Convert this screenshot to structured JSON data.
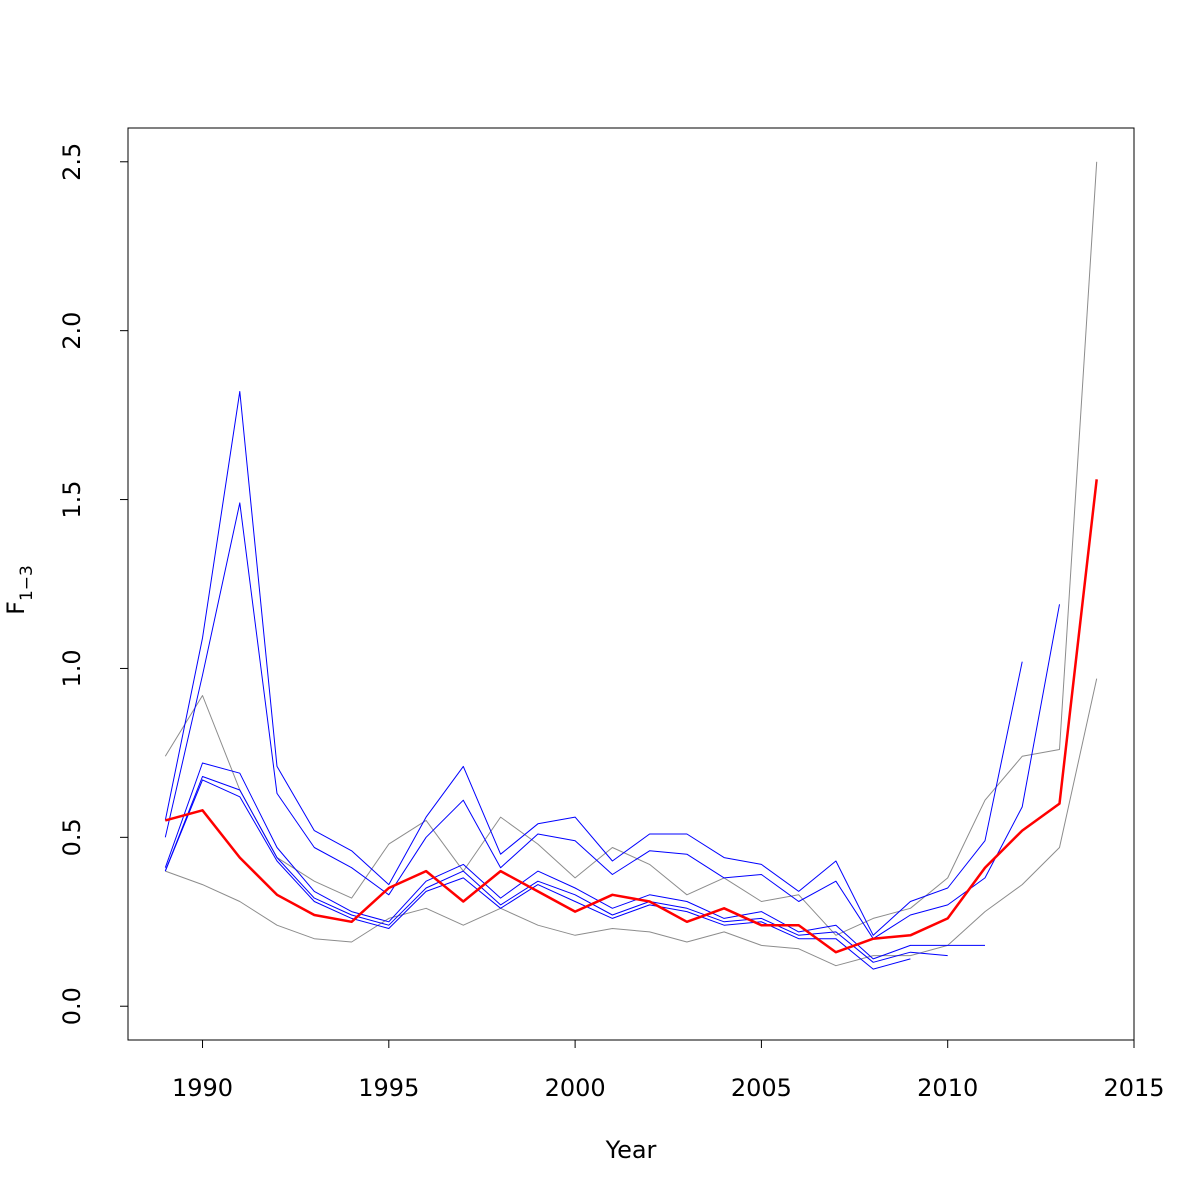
{
  "chart_data": {
    "type": "line",
    "xlabel": "Year",
    "ylabel": {
      "main": "F",
      "subscript": "1−3"
    },
    "xlim": [
      1988,
      2015
    ],
    "ylim": [
      -0.1,
      2.6
    ],
    "x_ticks": [
      1990,
      1995,
      2000,
      2005,
      2010,
      2015
    ],
    "x_tick_labels": [
      "1990",
      "1995",
      "2000",
      "2005",
      "2010",
      "2015"
    ],
    "y_ticks": [
      0.0,
      0.5,
      1.0,
      1.5,
      2.0,
      2.5
    ],
    "y_tick_labels": [
      "0.0",
      "0.5",
      "1.0",
      "1.5",
      "2.0",
      "2.5"
    ],
    "grid": false,
    "legend": "none",
    "colors": {
      "main": "#ff0000",
      "retro": "#0000ff",
      "bounds": "#8c8c8c",
      "axis": "#000000"
    },
    "series": [
      {
        "role": "main",
        "color": "#ff0000",
        "points": [
          [
            1989,
            0.55
          ],
          [
            1990,
            0.58
          ],
          [
            1991,
            0.44
          ],
          [
            1992,
            0.33
          ],
          [
            1993,
            0.27
          ],
          [
            1994,
            0.25
          ],
          [
            1995,
            0.35
          ],
          [
            1996,
            0.4
          ],
          [
            1997,
            0.31
          ],
          [
            1998,
            0.4
          ],
          [
            1999,
            0.34
          ],
          [
            2000,
            0.28
          ],
          [
            2001,
            0.33
          ],
          [
            2002,
            0.31
          ],
          [
            2003,
            0.25
          ],
          [
            2004,
            0.29
          ],
          [
            2005,
            0.24
          ],
          [
            2006,
            0.24
          ],
          [
            2007,
            0.16
          ],
          [
            2008,
            0.2
          ],
          [
            2009,
            0.21
          ],
          [
            2010,
            0.26
          ],
          [
            2011,
            0.41
          ],
          [
            2012,
            0.52
          ],
          [
            2013,
            0.6
          ],
          [
            2014,
            1.56
          ]
        ]
      },
      {
        "role": "bound",
        "color": "#8c8c8c",
        "points": [
          [
            1989,
            0.74
          ],
          [
            1990,
            0.92
          ],
          [
            1991,
            0.64
          ],
          [
            1992,
            0.44
          ],
          [
            1993,
            0.37
          ],
          [
            1994,
            0.32
          ],
          [
            1995,
            0.48
          ],
          [
            1996,
            0.55
          ],
          [
            1997,
            0.4
          ],
          [
            1998,
            0.56
          ],
          [
            1999,
            0.48
          ],
          [
            2000,
            0.38
          ],
          [
            2001,
            0.47
          ],
          [
            2002,
            0.42
          ],
          [
            2003,
            0.33
          ],
          [
            2004,
            0.38
          ],
          [
            2005,
            0.31
          ],
          [
            2006,
            0.33
          ],
          [
            2007,
            0.21
          ],
          [
            2008,
            0.26
          ],
          [
            2009,
            0.29
          ],
          [
            2010,
            0.38
          ],
          [
            2011,
            0.61
          ],
          [
            2012,
            0.74
          ],
          [
            2013,
            0.76
          ],
          [
            2014,
            2.5
          ]
        ]
      },
      {
        "role": "bound",
        "color": "#8c8c8c",
        "points": [
          [
            1989,
            0.4
          ],
          [
            1990,
            0.36
          ],
          [
            1991,
            0.31
          ],
          [
            1992,
            0.24
          ],
          [
            1993,
            0.2
          ],
          [
            1994,
            0.19
          ],
          [
            1995,
            0.26
          ],
          [
            1996,
            0.29
          ],
          [
            1997,
            0.24
          ],
          [
            1998,
            0.29
          ],
          [
            1999,
            0.24
          ],
          [
            2000,
            0.21
          ],
          [
            2001,
            0.23
          ],
          [
            2002,
            0.22
          ],
          [
            2003,
            0.19
          ],
          [
            2004,
            0.22
          ],
          [
            2005,
            0.18
          ],
          [
            2006,
            0.17
          ],
          [
            2007,
            0.12
          ],
          [
            2008,
            0.15
          ],
          [
            2009,
            0.15
          ],
          [
            2010,
            0.18
          ],
          [
            2011,
            0.28
          ],
          [
            2012,
            0.36
          ],
          [
            2013,
            0.47
          ],
          [
            2014,
            0.97
          ]
        ]
      },
      {
        "role": "retro",
        "color": "#0000ff",
        "points": [
          [
            1989,
            0.55
          ],
          [
            1990,
            1.09
          ],
          [
            1991,
            1.82
          ],
          [
            1992,
            0.71
          ],
          [
            1993,
            0.52
          ],
          [
            1994,
            0.46
          ],
          [
            1995,
            0.36
          ],
          [
            1996,
            0.56
          ],
          [
            1997,
            0.71
          ],
          [
            1998,
            0.45
          ],
          [
            1999,
            0.54
          ],
          [
            2000,
            0.56
          ],
          [
            2001,
            0.43
          ],
          [
            2002,
            0.51
          ],
          [
            2003,
            0.51
          ],
          [
            2004,
            0.44
          ],
          [
            2005,
            0.42
          ],
          [
            2006,
            0.34
          ],
          [
            2007,
            0.43
          ],
          [
            2008,
            0.21
          ],
          [
            2009,
            0.31
          ],
          [
            2010,
            0.35
          ],
          [
            2011,
            0.49
          ],
          [
            2012,
            1.02
          ]
        ]
      },
      {
        "role": "retro",
        "color": "#0000ff",
        "points": [
          [
            1989,
            0.5
          ],
          [
            1990,
            0.98
          ],
          [
            1991,
            1.49
          ],
          [
            1992,
            0.63
          ],
          [
            1993,
            0.47
          ],
          [
            1994,
            0.41
          ],
          [
            1995,
            0.33
          ],
          [
            1996,
            0.5
          ],
          [
            1997,
            0.61
          ],
          [
            1998,
            0.41
          ],
          [
            1999,
            0.51
          ],
          [
            2000,
            0.49
          ],
          [
            2001,
            0.39
          ],
          [
            2002,
            0.46
          ],
          [
            2003,
            0.45
          ],
          [
            2004,
            0.38
          ],
          [
            2005,
            0.39
          ],
          [
            2006,
            0.31
          ],
          [
            2007,
            0.37
          ],
          [
            2008,
            0.2
          ],
          [
            2009,
            0.27
          ],
          [
            2010,
            0.3
          ],
          [
            2011,
            0.38
          ],
          [
            2012,
            0.59
          ],
          [
            2013,
            1.19
          ]
        ]
      },
      {
        "role": "retro",
        "color": "#0000ff",
        "points": [
          [
            1989,
            0.41
          ],
          [
            1990,
            0.72
          ],
          [
            1991,
            0.69
          ],
          [
            1992,
            0.47
          ],
          [
            1993,
            0.34
          ],
          [
            1994,
            0.28
          ],
          [
            1995,
            0.25
          ],
          [
            1996,
            0.37
          ],
          [
            1997,
            0.42
          ],
          [
            1998,
            0.32
          ],
          [
            1999,
            0.4
          ],
          [
            2000,
            0.35
          ],
          [
            2001,
            0.29
          ],
          [
            2002,
            0.33
          ],
          [
            2003,
            0.31
          ],
          [
            2004,
            0.26
          ],
          [
            2005,
            0.28
          ],
          [
            2006,
            0.22
          ],
          [
            2007,
            0.24
          ],
          [
            2008,
            0.14
          ],
          [
            2009,
            0.18
          ],
          [
            2010,
            0.18
          ],
          [
            2011,
            0.18
          ]
        ]
      },
      {
        "role": "retro",
        "color": "#0000ff",
        "points": [
          [
            1989,
            0.4
          ],
          [
            1990,
            0.68
          ],
          [
            1991,
            0.64
          ],
          [
            1992,
            0.44
          ],
          [
            1993,
            0.32
          ],
          [
            1994,
            0.27
          ],
          [
            1995,
            0.24
          ],
          [
            1996,
            0.35
          ],
          [
            1997,
            0.4
          ],
          [
            1998,
            0.3
          ],
          [
            1999,
            0.37
          ],
          [
            2000,
            0.33
          ],
          [
            2001,
            0.27
          ],
          [
            2002,
            0.31
          ],
          [
            2003,
            0.29
          ],
          [
            2004,
            0.25
          ],
          [
            2005,
            0.26
          ],
          [
            2006,
            0.21
          ],
          [
            2007,
            0.22
          ],
          [
            2008,
            0.13
          ],
          [
            2009,
            0.16
          ],
          [
            2010,
            0.15
          ]
        ]
      },
      {
        "role": "retro",
        "color": "#0000ff",
        "points": [
          [
            1989,
            0.4
          ],
          [
            1990,
            0.67
          ],
          [
            1991,
            0.62
          ],
          [
            1992,
            0.43
          ],
          [
            1993,
            0.31
          ],
          [
            1994,
            0.26
          ],
          [
            1995,
            0.23
          ],
          [
            1996,
            0.34
          ],
          [
            1997,
            0.38
          ],
          [
            1998,
            0.29
          ],
          [
            1999,
            0.36
          ],
          [
            2000,
            0.31
          ],
          [
            2001,
            0.26
          ],
          [
            2002,
            0.3
          ],
          [
            2003,
            0.28
          ],
          [
            2004,
            0.24
          ],
          [
            2005,
            0.25
          ],
          [
            2006,
            0.2
          ],
          [
            2007,
            0.2
          ],
          [
            2008,
            0.11
          ],
          [
            2009,
            0.14
          ]
        ]
      }
    ]
  }
}
